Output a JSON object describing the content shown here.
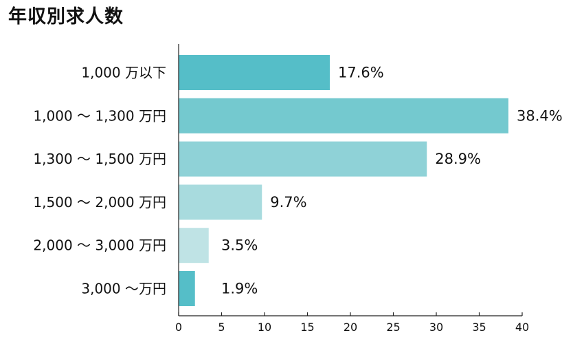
{
  "title": "年収別求人数",
  "chart_data": {
    "type": "bar",
    "orientation": "horizontal",
    "title": "年収別求人数",
    "xlabel": "",
    "ylabel": "",
    "categories": [
      "1,000 万以下",
      "1,000 ～ 1,300 万円",
      "1,300 ～ 1,500 万円",
      "1,500 ～ 2,000 万円",
      "2,000 ～ 3,000 万円",
      "3,000 ～万円"
    ],
    "values": [
      17.6,
      38.4,
      28.9,
      9.7,
      3.5,
      1.9
    ],
    "value_labels": [
      "17.6%",
      "38.4%",
      "28.9%",
      "9.7%",
      "3.5%",
      "1.9%"
    ],
    "bar_colors": [
      "#55bec8",
      "#74c9cf",
      "#8fd2d7",
      "#a8dbde",
      "#bfe3e5",
      "#55bec8"
    ],
    "xlim": [
      0,
      40
    ],
    "xticks": [
      0,
      5,
      10,
      15,
      20,
      25,
      30,
      35,
      40
    ],
    "grid": false,
    "legend": "none"
  }
}
